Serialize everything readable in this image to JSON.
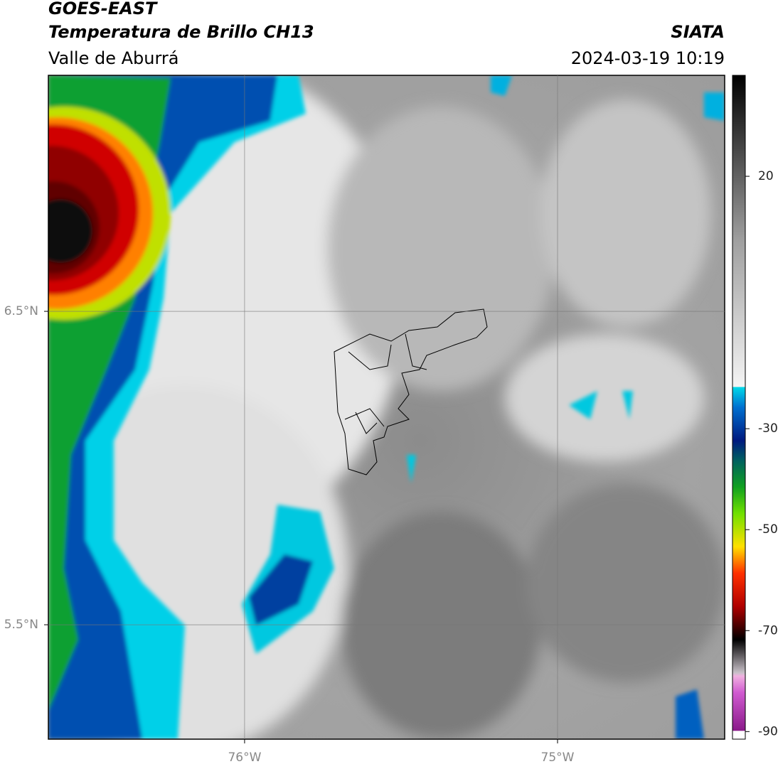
{
  "header": {
    "satellite": "GOES-EAST",
    "product": "Temperatura de Brillo CH13",
    "region": "Valle de Aburrá",
    "agency": "SIATA",
    "datetime": "2024-03-19 10:19"
  },
  "map": {
    "xlim": [
      -76.627,
      -74.466
    ],
    "ylim": [
      5.135,
      7.253
    ],
    "xticks": [
      {
        "value": -76,
        "label": "76°W"
      },
      {
        "value": -75,
        "label": "75°W"
      }
    ],
    "yticks": [
      {
        "value": 6.5,
        "label": "6.5°N"
      },
      {
        "value": 5.5,
        "label": "5.5°N"
      }
    ],
    "grid": true
  },
  "colorbar": {
    "lim": [
      -91.5,
      40
    ],
    "ticks": [
      20,
      -30,
      -50,
      -70,
      -90
    ]
  }
}
